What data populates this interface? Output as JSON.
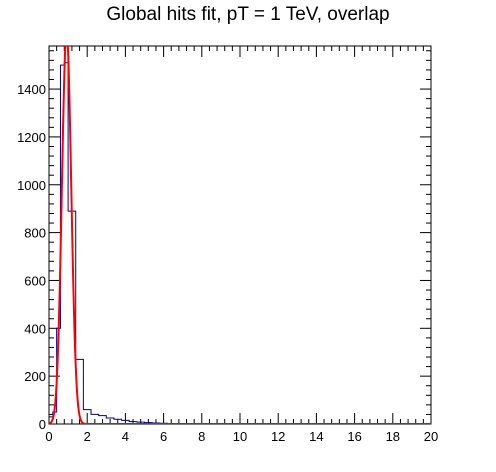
{
  "chart_data": {
    "type": "histogram",
    "title": "Global hits fit, pT = 1 TeV, overlap",
    "xlabel": "",
    "ylabel": "",
    "xlim": [
      0,
      20
    ],
    "ylim": [
      0,
      1580
    ],
    "x_ticks": [
      0,
      2,
      4,
      6,
      8,
      10,
      12,
      14,
      16,
      18,
      20
    ],
    "y_ticks": [
      0,
      200,
      400,
      600,
      800,
      1000,
      1200,
      1400
    ],
    "grid": false,
    "legend": "none",
    "histogram": {
      "name": "",
      "color": "#00008b",
      "bin_edges": [
        0,
        0.2,
        0.4,
        0.6,
        0.8,
        1.0,
        1.2,
        1.4,
        1.6,
        1.8,
        2.0,
        2.2,
        2.4,
        2.6,
        2.8,
        3.0,
        3.2,
        3.4,
        3.6,
        3.8,
        4.0,
        4.2,
        4.4,
        4.6,
        4.8,
        5.0,
        5.2,
        5.4,
        5.6,
        5.8,
        6.0,
        6.2
      ],
      "counts": [
        30,
        50,
        400,
        1500,
        1510,
        890,
        890,
        270,
        270,
        60,
        60,
        40,
        40,
        35,
        35,
        25,
        25,
        20,
        20,
        15,
        15,
        10,
        10,
        8,
        8,
        6,
        6,
        4,
        4,
        3,
        3
      ]
    },
    "fit": {
      "name": "",
      "type": "gaussian",
      "color": "#ff0000",
      "amplitude": 1640,
      "mean": 0.92,
      "sigma": 0.245,
      "x_range": [
        0,
        20
      ]
    }
  }
}
